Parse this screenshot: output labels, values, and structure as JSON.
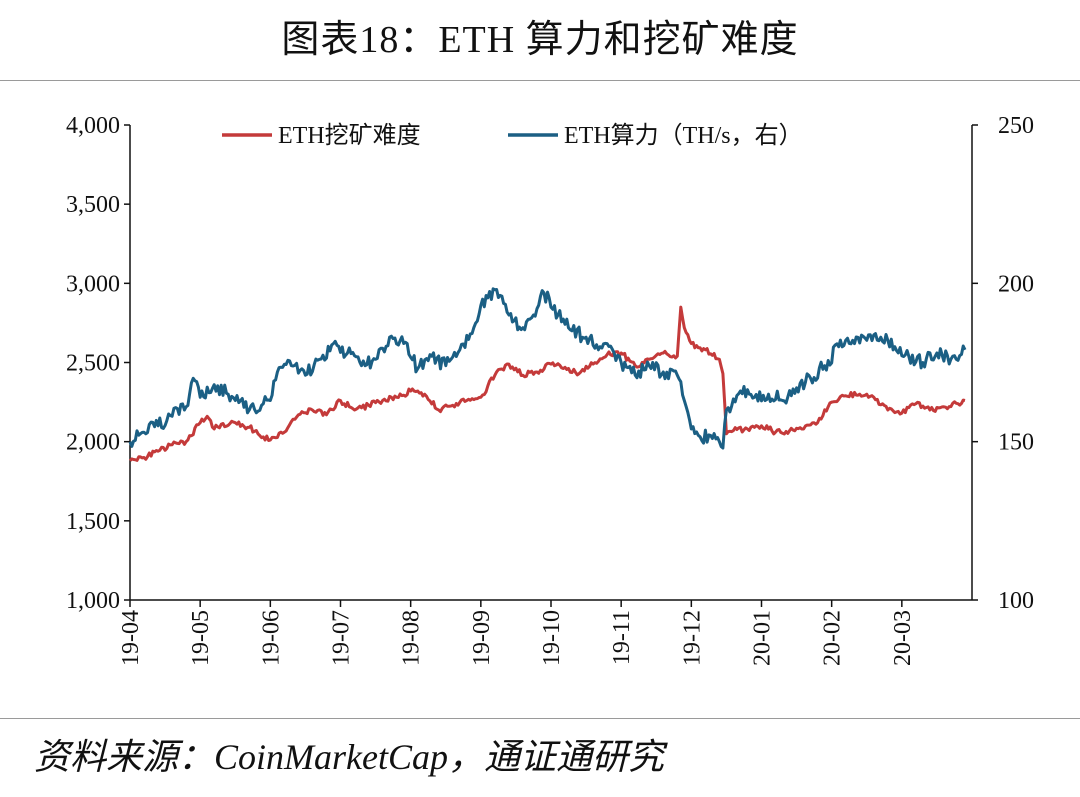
{
  "title": "图表18：ETH 算力和挖矿难度",
  "source": "资料来源：CoinMarketCap，通证通研究",
  "colors": {
    "difficulty": "#c43a3a",
    "hashrate": "#1b5f84",
    "axis": "#111111",
    "rule": "#9a9a9a"
  },
  "chart_data": {
    "type": "line",
    "legend_position": "top",
    "grid": false,
    "x_ticks": [
      "19-04",
      "19-05",
      "19-06",
      "19-07",
      "19-08",
      "19-09",
      "19-10",
      "19-11",
      "19-12",
      "20-01",
      "20-02",
      "20-03"
    ],
    "x_range": [
      0,
      12.0
    ],
    "y_left": {
      "range": [
        1000,
        4000
      ],
      "ticks": [
        1000,
        1500,
        2000,
        2500,
        3000,
        3500,
        4000
      ],
      "tick_labels": [
        "1,000",
        "1,500",
        "2,000",
        "2,500",
        "3,000",
        "3,500",
        "4,000"
      ]
    },
    "y_right": {
      "range": [
        100,
        250
      ],
      "ticks": [
        100,
        150,
        200,
        250
      ],
      "tick_labels": [
        "100",
        "150",
        "200",
        "250"
      ]
    },
    "series": [
      {
        "name": "ETH挖矿难度",
        "axis": "left",
        "color": "#c43a3a",
        "x": [
          0,
          0.2,
          0.4,
          0.6,
          0.8,
          1.0,
          1.1,
          1.2,
          1.3,
          1.5,
          1.7,
          1.9,
          2.0,
          2.2,
          2.4,
          2.6,
          2.8,
          3.0,
          3.2,
          3.4,
          3.6,
          3.8,
          4.0,
          4.2,
          4.4,
          4.6,
          4.8,
          5.0,
          5.2,
          5.4,
          5.6,
          5.8,
          6.0,
          6.2,
          6.4,
          6.6,
          6.8,
          7.0,
          7.2,
          7.4,
          7.6,
          7.8,
          7.85,
          7.9,
          8.0,
          8.2,
          8.4,
          8.45,
          8.5,
          8.6,
          8.8,
          9.0,
          9.2,
          9.4,
          9.6,
          9.8,
          10.0,
          10.2,
          10.4,
          10.6,
          10.8,
          11.0,
          11.2,
          11.4,
          11.6,
          11.8,
          11.9
        ],
        "y": [
          1880,
          1900,
          1940,
          1980,
          2000,
          2120,
          2160,
          2080,
          2110,
          2120,
          2090,
          2030,
          2010,
          2060,
          2170,
          2200,
          2170,
          2260,
          2200,
          2230,
          2260,
          2280,
          2320,
          2300,
          2200,
          2230,
          2260,
          2280,
          2420,
          2490,
          2420,
          2440,
          2490,
          2470,
          2430,
          2490,
          2550,
          2560,
          2480,
          2520,
          2560,
          2540,
          2850,
          2720,
          2620,
          2580,
          2520,
          2430,
          2050,
          2070,
          2080,
          2100,
          2060,
          2070,
          2080,
          2120,
          2250,
          2290,
          2300,
          2280,
          2200,
          2180,
          2240,
          2200,
          2220,
          2240,
          2260
        ]
      },
      {
        "name": "ETH算力（TH/s，右）",
        "axis": "right",
        "color": "#1b5f84",
        "x": [
          0,
          0.2,
          0.4,
          0.6,
          0.8,
          0.9,
          1.0,
          1.2,
          1.4,
          1.5,
          1.7,
          1.9,
          2.0,
          2.1,
          2.3,
          2.5,
          2.7,
          2.9,
          3.1,
          3.3,
          3.5,
          3.7,
          3.9,
          4.1,
          4.3,
          4.5,
          4.7,
          4.9,
          5.0,
          5.2,
          5.4,
          5.6,
          5.8,
          5.9,
          6.1,
          6.3,
          6.5,
          6.7,
          6.9,
          7.0,
          7.2,
          7.4,
          7.6,
          7.8,
          7.9,
          8.0,
          8.1,
          8.3,
          8.4,
          8.45,
          8.5,
          8.7,
          8.9,
          9.1,
          9.3,
          9.5,
          9.7,
          9.9,
          10.1,
          10.3,
          10.5,
          10.7,
          10.9,
          11.1,
          11.3,
          11.5,
          11.7,
          11.9
        ],
        "y": [
          150,
          153,
          155,
          158,
          161,
          170,
          164,
          168,
          165,
          163,
          160,
          162,
          163,
          172,
          174,
          171,
          176,
          181,
          178,
          174,
          176,
          183,
          181,
          173,
          177,
          174,
          179,
          186,
          193,
          198,
          190,
          186,
          192,
          197,
          190,
          185,
          183,
          180,
          178,
          175,
          171,
          174,
          172,
          171,
          163,
          154,
          152,
          151,
          150,
          148,
          160,
          166,
          164,
          165,
          163,
          167,
          170,
          174,
          180,
          182,
          182,
          183,
          180,
          177,
          175,
          178,
          176,
          179
        ]
      }
    ]
  }
}
